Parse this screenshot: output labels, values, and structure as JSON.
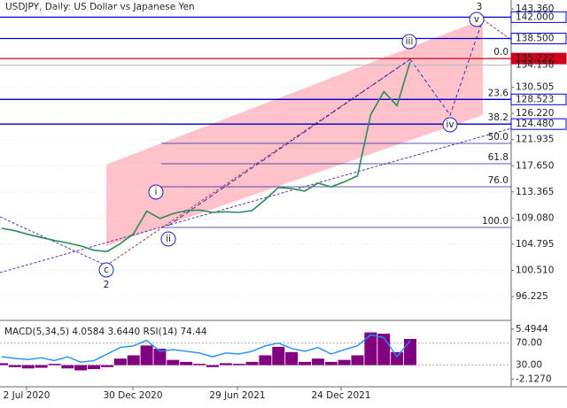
{
  "chart_data": {
    "type": "line",
    "title": "USDJPY, Daily:  US Dollar vs Japanese Yen",
    "values": [
      107.4,
      107.0,
      106.4,
      105.9,
      105.4,
      105.0,
      104.5,
      103.8,
      103.6,
      104.9,
      106.5,
      110.2,
      109.0,
      109.8,
      110.3,
      110.4,
      110.0,
      110.1,
      110.0,
      110.3,
      112.1,
      114.1,
      113.9,
      113.5,
      114.8,
      114.2,
      115.0,
      116.0,
      126.0,
      129.8,
      127.5,
      134.7
    ],
    "color": "#2e8b57",
    "ylim": [
      92.31,
      144.81
    ],
    "yticks": [
      {
        "value": 143.36,
        "label": "143.360"
      },
      {
        "value": 130.505,
        "label": "130.505"
      },
      {
        "value": 126.22,
        "label": "126.220"
      },
      {
        "value": 121.935,
        "label": "121.935"
      },
      {
        "value": 117.65,
        "label": "117.650"
      },
      {
        "value": 113.365,
        "label": "113.365"
      },
      {
        "value": 109.08,
        "label": "109.080"
      },
      {
        "value": 104.795,
        "label": "104.795"
      },
      {
        "value": 100.51,
        "label": "100.510"
      },
      {
        "value": 96.225,
        "label": "96.225"
      }
    ],
    "grid": true,
    "price_levels": [
      {
        "value": 142,
        "label": "142.000",
        "color": "#0000cc"
      },
      {
        "value": 138.5,
        "label": "138.500",
        "color": "#0000cc"
      },
      {
        "value": 135.222,
        "label": "135.222",
        "color": "#d0021b"
      },
      {
        "value": 128.523,
        "label": "128.523",
        "color": "#0000cc"
      },
      {
        "value": 124.48,
        "label": "124.480",
        "color": "#0000cc"
      }
    ],
    "last_price": {
      "value": 134.158,
      "label": "134.158"
    },
    "fib_levels": [
      {
        "value": 135.222,
        "label": "0.0"
      },
      {
        "value": 128.523,
        "label": "23.6"
      },
      {
        "value": 124.48,
        "label": "38.2"
      },
      {
        "value": 121.32,
        "label": "50.0"
      },
      {
        "value": 117.98,
        "label": "61.8"
      },
      {
        "value": 114.21,
        "label": "76.0"
      },
      {
        "value": 107.54,
        "label": "100.0"
      }
    ],
    "wave_labels": [
      "2",
      "3",
      "c",
      "i",
      "ii",
      "iii",
      "iv",
      "v"
    ],
    "x_labels": [
      "2 Jul 2020",
      "30 Dec 2020",
      "29 Jun 2021",
      "24 Dec 2021"
    ],
    "indicator": {
      "label": "MACD(5,34,5) 4.0584 3.6440 RSI(14) 74.44",
      "histogram": [
        0.3,
        -0.3,
        -0.5,
        -0.4,
        0.2,
        -0.5,
        -0.8,
        -0.6,
        -0.3,
        1.0,
        1.5,
        3.0,
        2.5,
        0.8,
        0.5,
        0.2,
        -0.3,
        0.3,
        0.2,
        0.5,
        1.5,
        2.8,
        2.0,
        0.5,
        1.0,
        0.5,
        0.8,
        1.5,
        5.0,
        4.8,
        2.0,
        4.0
      ],
      "rsi": [
        45,
        42,
        40,
        43,
        38,
        45,
        35,
        38,
        50,
        62,
        65,
        75,
        55,
        58,
        55,
        52,
        45,
        52,
        50,
        55,
        65,
        70,
        60,
        55,
        62,
        50,
        58,
        65,
        85,
        80,
        45,
        74.44
      ],
      "macd_ticks": [
        {
          "value": 5.4944,
          "label": "5.4944"
        },
        {
          "value": -2.127,
          "label": "-2.1270"
        }
      ],
      "rsi_ticks": [
        {
          "value": 70,
          "label": "70.00"
        },
        {
          "value": 30,
          "label": "30.00"
        }
      ],
      "ylim": [
        -3.3,
        6.7
      ],
      "rsi_lim": [
        -10,
        110
      ]
    }
  }
}
